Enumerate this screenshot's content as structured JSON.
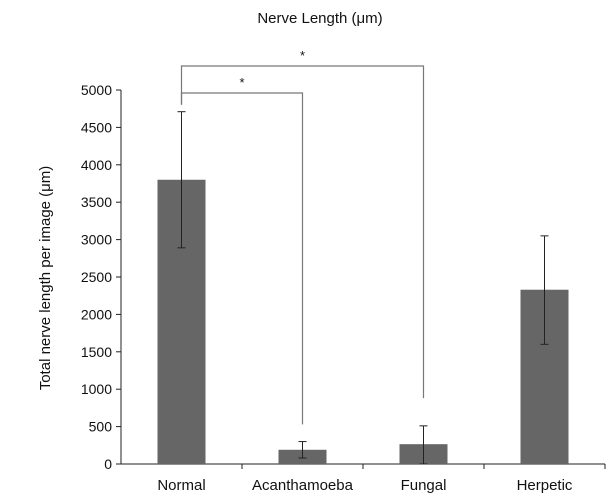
{
  "chart_data": {
    "type": "bar",
    "title": "Nerve Length (μm)",
    "xlabel": "",
    "ylabel": "Total nerve length per image (μm)",
    "categories": [
      "Normal",
      "Acanthamoeba",
      "Fungal",
      "Herpetic"
    ],
    "values": [
      3800,
      190,
      265,
      2330
    ],
    "error_low": [
      2890,
      80,
      0,
      1600
    ],
    "error_high": [
      4710,
      300,
      510,
      3050
    ],
    "ylim": [
      0,
      5000
    ],
    "yticks": [
      0,
      500,
      1000,
      1500,
      2000,
      2500,
      3000,
      3500,
      4000,
      4500,
      5000
    ],
    "bar_color": "#666666",
    "grid": false,
    "legend": "none",
    "significance": [
      {
        "from": "Normal",
        "to": "Acanthamoeba",
        "label": "*"
      },
      {
        "from": "Normal",
        "to": "Fungal",
        "label": "*"
      }
    ]
  }
}
